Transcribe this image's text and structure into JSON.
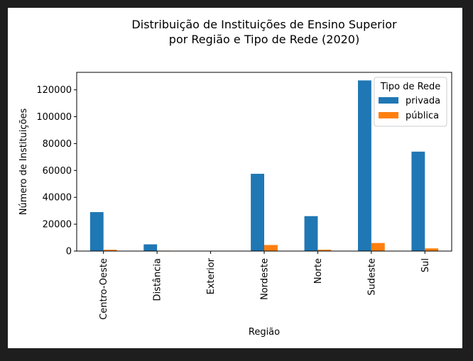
{
  "chart_data": {
    "type": "bar",
    "title": "Distribuição de Instituições de Ensino Superior\npor Região e Tipo de Rede (2020)",
    "xlabel": "Região",
    "ylabel": "Número de Instituições",
    "categories": [
      "Centro-Oeste",
      "Distância",
      "Exterior",
      "Nordeste",
      "Norte",
      "Sudeste",
      "Sul"
    ],
    "series": [
      {
        "name": "privada",
        "color": "#1f77b4",
        "values": [
          29000,
          5000,
          0,
          57500,
          26000,
          127000,
          74000
        ]
      },
      {
        "name": "pública",
        "color": "#ff7f0e",
        "values": [
          1000,
          300,
          0,
          4500,
          1000,
          6000,
          2000
        ]
      }
    ],
    "ylim": [
      0,
      133000
    ],
    "yticks": [
      0,
      20000,
      40000,
      60000,
      80000,
      100000,
      120000
    ],
    "legend": {
      "title": "Tipo de Rede",
      "position": "top-right"
    },
    "grid": false
  }
}
